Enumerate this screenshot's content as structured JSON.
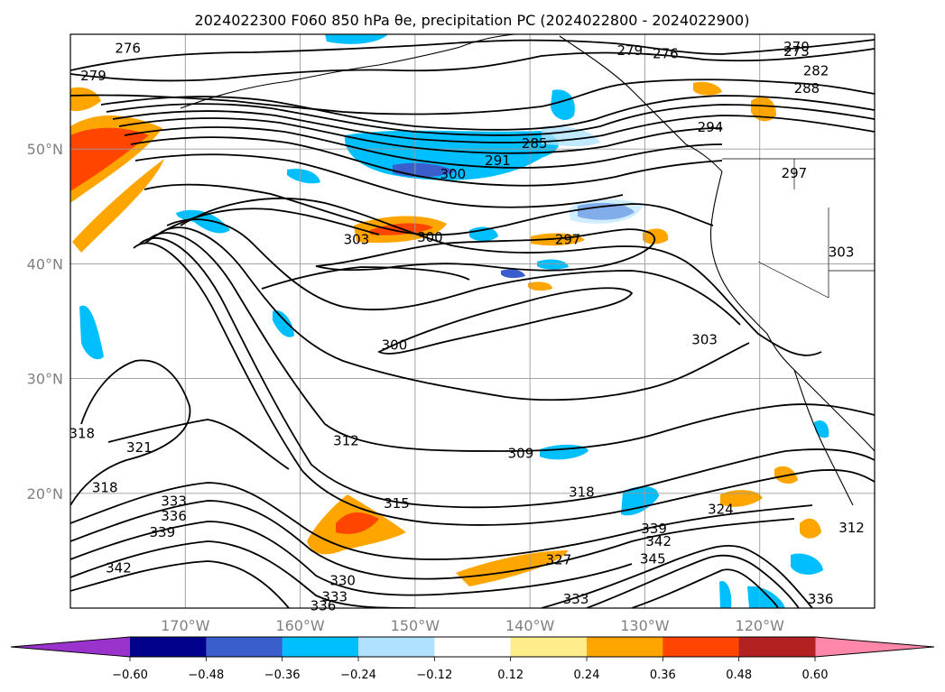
{
  "chart_data": {
    "type": "contour",
    "title": "2024022300 F060 850 hPa θe, precipitation PC (2024022800 - 2024022900)",
    "x_ticks": [
      {
        "lon": -170,
        "label": "170°W"
      },
      {
        "lon": -160,
        "label": "160°W"
      },
      {
        "lon": -150,
        "label": "150°W"
      },
      {
        "lon": -140,
        "label": "140°W"
      },
      {
        "lon": -130,
        "label": "130°W"
      },
      {
        "lon": -120,
        "label": "120°W"
      }
    ],
    "y_ticks": [
      {
        "lat": 50,
        "label": "50°N"
      },
      {
        "lat": 40,
        "label": "40°N"
      },
      {
        "lat": 30,
        "label": "30°N"
      },
      {
        "lat": 20,
        "label": "20°N"
      }
    ],
    "xlim": [
      -180,
      -110
    ],
    "ylim": [
      10,
      60
    ],
    "grid": true,
    "colorbar": {
      "orientation": "horizontal",
      "boundaries": [
        -0.72,
        -0.6,
        -0.48,
        -0.36,
        -0.24,
        -0.12,
        0.12,
        0.24,
        0.36,
        0.48,
        0.6,
        0.72
      ],
      "colors": [
        "#9933cc",
        "#00008b",
        "#3a5fcd",
        "#00bfff",
        "#b0e2ff",
        "#ffffff",
        "#ffec8b",
        "#ffa500",
        "#ff4500",
        "#b22222",
        "#ff88aa"
      ],
      "extend": "both",
      "tick_labels": [
        "−0.60",
        "−0.48",
        "−0.36",
        "−0.24",
        "−0.12",
        "0.12",
        "0.24",
        "0.36",
        "0.48",
        "0.60"
      ]
    },
    "contour_labels": [
      {
        "text": "276",
        "lon": -175,
        "lat": 58.8
      },
      {
        "text": "279",
        "lon": -178,
        "lat": 56.4
      },
      {
        "text": "279",
        "lon": -131.3,
        "lat": 58.6
      },
      {
        "text": "276",
        "lon": -128.2,
        "lat": 58.3
      },
      {
        "text": "270",
        "lon": -116.8,
        "lat": 58.9
      },
      {
        "text": "273",
        "lon": -116.8,
        "lat": 58.5
      },
      {
        "text": "282",
        "lon": -115.1,
        "lat": 56.8
      },
      {
        "text": "288",
        "lon": -115.9,
        "lat": 55.3
      },
      {
        "text": "294",
        "lon": -124.3,
        "lat": 51.9
      },
      {
        "text": "285",
        "lon": -139.6,
        "lat": 50.5
      },
      {
        "text": "291",
        "lon": -142.8,
        "lat": 49.0
      },
      {
        "text": "300",
        "lon": -146.7,
        "lat": 47.8
      },
      {
        "text": "297",
        "lon": -117.0,
        "lat": 47.9
      },
      {
        "text": "303",
        "lon": -155.1,
        "lat": 42.1
      },
      {
        "text": "300",
        "lon": -148.7,
        "lat": 42.3
      },
      {
        "text": "297",
        "lon": -136.7,
        "lat": 42.1
      },
      {
        "text": "303",
        "lon": -112.9,
        "lat": 41.0
      },
      {
        "text": "303",
        "lon": -124.8,
        "lat": 33.4
      },
      {
        "text": "300",
        "lon": -151.8,
        "lat": 32.9
      },
      {
        "text": "312",
        "lon": -156.0,
        "lat": 24.6
      },
      {
        "text": "321",
        "lon": -174.0,
        "lat": 24.0
      },
      {
        "text": "318",
        "lon": -179.0,
        "lat": 25.2
      },
      {
        "text": "318",
        "lon": -177.0,
        "lat": 20.5
      },
      {
        "text": "309",
        "lon": -140.8,
        "lat": 23.5
      },
      {
        "text": "315",
        "lon": -151.6,
        "lat": 19.1
      },
      {
        "text": "318",
        "lon": -135.5,
        "lat": 20.1
      },
      {
        "text": "324",
        "lon": -123.4,
        "lat": 18.6
      },
      {
        "text": "312",
        "lon": -112.0,
        "lat": 17.0
      },
      {
        "text": "333",
        "lon": -171.0,
        "lat": 19.3
      },
      {
        "text": "336",
        "lon": -171.0,
        "lat": 18.0
      },
      {
        "text": "339",
        "lon": -172.0,
        "lat": 16.6
      },
      {
        "text": "342",
        "lon": -175.8,
        "lat": 13.5
      },
      {
        "text": "327",
        "lon": -137.5,
        "lat": 14.2
      },
      {
        "text": "330",
        "lon": -156.3,
        "lat": 12.4
      },
      {
        "text": "333",
        "lon": -157.0,
        "lat": 11.0
      },
      {
        "text": "336",
        "lon": -158.0,
        "lat": 10.2
      },
      {
        "text": "333",
        "lon": -136.0,
        "lat": 10.8
      },
      {
        "text": "339",
        "lon": -129.2,
        "lat": 16.9
      },
      {
        "text": "342",
        "lon": -128.8,
        "lat": 15.8
      },
      {
        "text": "345",
        "lon": -129.3,
        "lat": 14.3
      },
      {
        "text": "336",
        "lon": -114.7,
        "lat": 10.8
      }
    ]
  }
}
